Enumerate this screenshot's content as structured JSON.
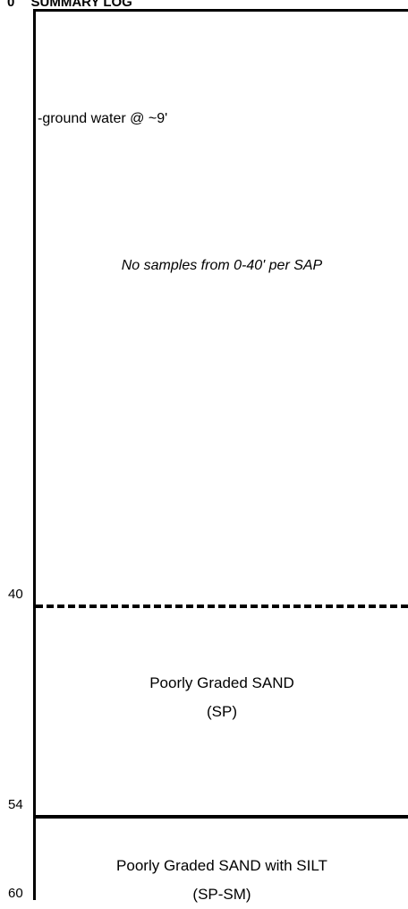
{
  "header": {
    "depth_start": "0",
    "title": "SUMMARY LOG"
  },
  "notes": {
    "groundwater": "-ground water @ ~9'",
    "no_samples": "No samples from 0-40' per SAP"
  },
  "depths": {
    "d40": "40",
    "d54": "54",
    "d60": "60"
  },
  "units": [
    {
      "name": "Poorly Graded SAND",
      "code": "(SP)"
    },
    {
      "name": "Poorly Graded SAND with SILT",
      "code": "(SP-SM)"
    }
  ]
}
